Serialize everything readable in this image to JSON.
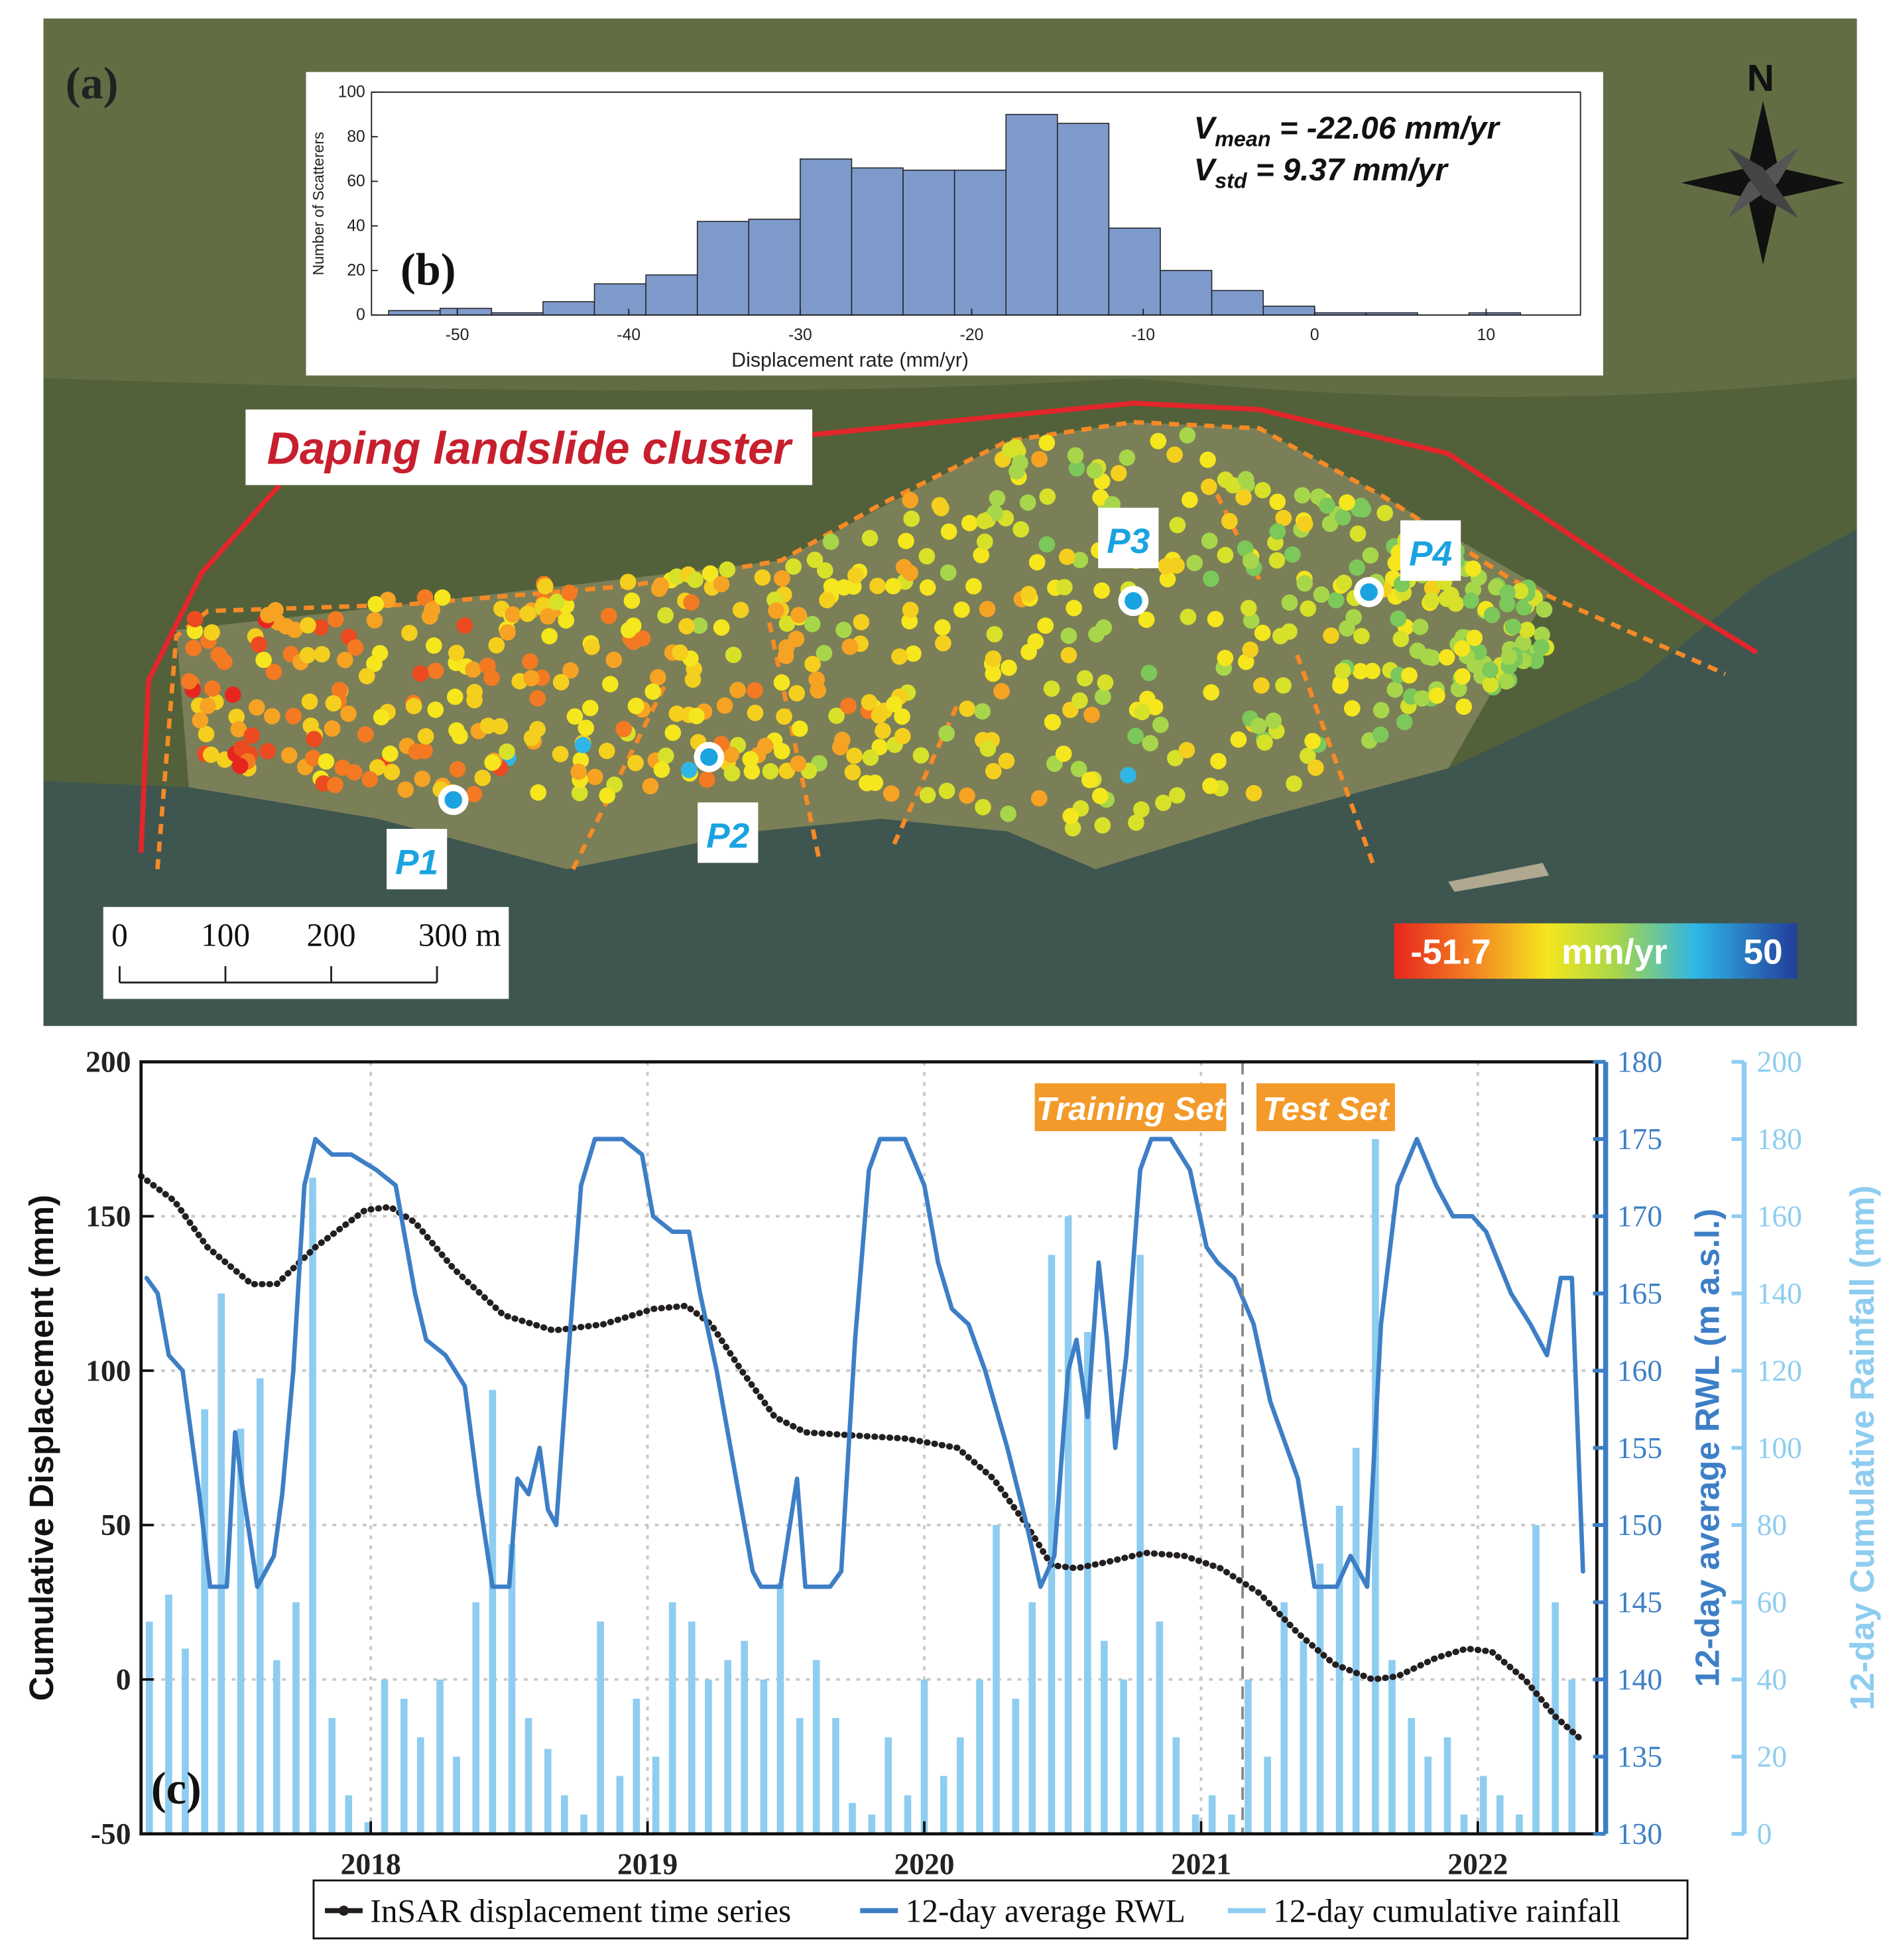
{
  "chart_data": [
    {
      "type": "map",
      "panel_label": "(a)",
      "north": "N",
      "title": "Daping landslide cluster",
      "points": [
        "P1",
        "P2",
        "P3",
        "P4"
      ],
      "scale_ticks": [
        0,
        100,
        200,
        {
          "value": 300,
          "label": "300 m"
        }
      ],
      "colorbar": {
        "min": -51.7,
        "unit": "mm/yr",
        "max": 50
      }
    },
    {
      "type": "histogram",
      "panel_label": "(b)",
      "xlabel": "Displacement rate (mm/yr)",
      "ylabel": "Number of Scatterers",
      "bins": [
        -54,
        -51,
        -48,
        -45,
        -42,
        -39,
        -36,
        -33,
        -30,
        -27,
        -24,
        -21,
        -18,
        -15,
        -12,
        -9,
        -6,
        -3,
        0,
        3,
        6,
        9,
        12
      ],
      "values": [
        2,
        3,
        1,
        6,
        14,
        18,
        42,
        43,
        70,
        66,
        65,
        65,
        90,
        86,
        39,
        20,
        11,
        4,
        1,
        1,
        0,
        1
      ],
      "color": "#7d9acb",
      "xlim": [
        -55,
        15.5
      ],
      "xticks": [
        -50,
        -40,
        -30,
        -20,
        -10,
        0,
        10
      ],
      "ylim": [
        0,
        100
      ],
      "yticks": [
        0,
        20,
        40,
        60,
        80,
        100
      ],
      "annotations": [
        {
          "symbol": "V",
          "subscript": "mean",
          "text": " = -22.06 mm/yr"
        },
        {
          "symbol": "V",
          "subscript": "std",
          "text": " = 9.37 mm/yr"
        }
      ]
    },
    {
      "type": "line",
      "panel_label": "(c)",
      "ylabel": "Cumulative Displacement (mm)",
      "y2label": "12-day average RWL (m a.s.l.)",
      "y3label": "12-day Cumulative Rainfall (mm)",
      "xlim": [
        2017.17,
        2022.43
      ],
      "xticks": [
        2018,
        2019,
        2020,
        2021,
        2022
      ],
      "ylim": [
        -50,
        200
      ],
      "yticks": [
        -50,
        0,
        50,
        100,
        150,
        200
      ],
      "y2lim": [
        130,
        180
      ],
      "y2ticks": [
        130,
        135,
        140,
        145,
        150,
        155,
        160,
        165,
        170,
        175,
        180
      ],
      "y3lim": [
        0,
        200
      ],
      "y3ticks": [
        0,
        20,
        40,
        60,
        80,
        100,
        120,
        140,
        160,
        180,
        200
      ],
      "grid": true,
      "split": {
        "x": 2021.15,
        "left_label": "Training Set",
        "right_label": "Test Set"
      },
      "series": [
        {
          "name": "InSAR displacement time series",
          "color": "#231f20",
          "x": [
            2017.17,
            2017.29,
            2017.41,
            2017.57,
            2017.66,
            2017.8,
            2017.98,
            2018.07,
            2018.16,
            2018.3,
            2018.48,
            2018.66,
            2018.84,
            2019.02,
            2019.14,
            2019.23,
            2019.34,
            2019.46,
            2019.57,
            2019.75,
            2019.93,
            2020.12,
            2020.25,
            2020.37,
            2020.46,
            2020.55,
            2020.66,
            2020.8,
            2020.94,
            2021.07,
            2021.21,
            2021.35,
            2021.48,
            2021.62,
            2021.71,
            2021.85,
            2021.96,
            2022.05,
            2022.17,
            2022.28,
            2022.38
          ],
          "values": [
            163,
            155,
            140,
            128,
            128,
            140,
            152,
            153,
            148,
            133,
            118,
            113,
            115,
            120,
            121,
            115,
            100,
            85,
            80,
            79,
            78,
            75,
            65,
            50,
            37,
            36,
            38,
            41,
            40,
            36,
            28,
            15,
            5,
            0,
            1,
            7,
            10,
            9,
            0,
            -12,
            -20
          ]
        },
        {
          "name": "12-day average RWL",
          "color": "#3d7fc6",
          "axis": "y2",
          "x": [
            2017.19,
            2017.23,
            2017.27,
            2017.32,
            2017.35,
            2017.38,
            2017.42,
            2017.48,
            2017.51,
            2017.54,
            2017.59,
            2017.65,
            2017.68,
            2017.72,
            2017.76,
            2017.8,
            2017.86,
            2017.93,
            2018.02,
            2018.09,
            2018.16,
            2018.2,
            2018.27,
            2018.34,
            2018.39,
            2018.44,
            2018.5,
            2018.53,
            2018.57,
            2018.61,
            2018.64,
            2018.67,
            2018.71,
            2018.76,
            2018.81,
            2018.91,
            2018.98,
            2019.02,
            2019.09,
            2019.15,
            2019.19,
            2019.25,
            2019.32,
            2019.38,
            2019.41,
            2019.48,
            2019.54,
            2019.57,
            2019.66,
            2019.7,
            2019.75,
            2019.8,
            2019.84,
            2019.93,
            2020.0,
            2020.05,
            2020.1,
            2020.16,
            2020.22,
            2020.3,
            2020.37,
            2020.42,
            2020.47,
            2020.52,
            2020.55,
            2020.59,
            2020.63,
            2020.66,
            2020.69,
            2020.73,
            2020.78,
            2020.82,
            2020.89,
            2020.96,
            2021.02,
            2021.06,
            2021.12,
            2021.19,
            2021.25,
            2021.35,
            2021.41,
            2021.49,
            2021.54,
            2021.6,
            2021.65,
            2021.71,
            2021.78,
            2021.85,
            2021.91,
            2021.98,
            2022.03,
            2022.12,
            2022.19,
            2022.25,
            2022.3,
            2022.34,
            2022.38
          ],
          "values": [
            166,
            165,
            161,
            160,
            156,
            152,
            146,
            146,
            156,
            152,
            146,
            148,
            152,
            160,
            172,
            175,
            174,
            174,
            173,
            172,
            165,
            162,
            161,
            159,
            152,
            146,
            146,
            153,
            152,
            155,
            151,
            150,
            160,
            172,
            175,
            175,
            174,
            170,
            169,
            169,
            165,
            160,
            153,
            147,
            146,
            146,
            153,
            146,
            146,
            147,
            162,
            173,
            175,
            175,
            172,
            167,
            164,
            163,
            160,
            155,
            150,
            146,
            148,
            160,
            162,
            157,
            167,
            162,
            155,
            161,
            173,
            175,
            175,
            173,
            168,
            167,
            166,
            163,
            158,
            153,
            146,
            146,
            148,
            146,
            163,
            172,
            175,
            172,
            170,
            170,
            169,
            165,
            163,
            161,
            166,
            166,
            147
          ]
        },
        {
          "name": "12-day cumulative rainfall",
          "color": "#8ecdf0",
          "axis": "y3",
          "type": "bar",
          "x": [
            2017.2,
            2017.27,
            2017.33,
            2017.4,
            2017.46,
            2017.53,
            2017.6,
            2017.66,
            2017.73,
            2017.79,
            2017.86,
            2017.92,
            2017.99,
            2018.05,
            2018.12,
            2018.18,
            2018.25,
            2018.31,
            2018.38,
            2018.44,
            2018.51,
            2018.57,
            2018.64,
            2018.7,
            2018.77,
            2018.83,
            2018.9,
            2018.96,
            2019.03,
            2019.09,
            2019.16,
            2019.22,
            2019.29,
            2019.35,
            2019.42,
            2019.48,
            2019.55,
            2019.61,
            2019.68,
            2019.74,
            2019.81,
            2019.87,
            2019.94,
            2020.0,
            2020.07,
            2020.13,
            2020.2,
            2020.26,
            2020.33,
            2020.39,
            2020.46,
            2020.52,
            2020.59,
            2020.65,
            2020.72,
            2020.78,
            2020.85,
            2020.91,
            2020.98,
            2021.04,
            2021.11,
            2021.17,
            2021.24,
            2021.3,
            2021.37,
            2021.43,
            2021.5,
            2021.56,
            2021.63,
            2021.69,
            2021.76,
            2021.82,
            2021.89,
            2021.95,
            2022.02,
            2022.08,
            2022.15,
            2022.21,
            2022.28,
            2022.34
          ],
          "values": [
            55,
            62,
            48,
            110,
            140,
            105,
            118,
            45,
            60,
            170,
            30,
            10,
            3,
            40,
            35,
            25,
            40,
            20,
            60,
            115,
            75,
            30,
            22,
            10,
            5,
            55,
            15,
            35,
            20,
            60,
            55,
            40,
            45,
            50,
            40,
            65,
            30,
            45,
            30,
            8,
            5,
            25,
            10,
            40,
            15,
            25,
            40,
            80,
            35,
            60,
            150,
            160,
            130,
            50,
            40,
            150,
            55,
            25,
            5,
            10,
            5,
            40,
            20,
            60,
            50,
            70,
            85,
            100,
            180,
            45,
            30,
            20,
            25,
            5,
            15,
            10,
            5,
            80,
            60,
            40
          ]
        }
      ]
    }
  ]
}
